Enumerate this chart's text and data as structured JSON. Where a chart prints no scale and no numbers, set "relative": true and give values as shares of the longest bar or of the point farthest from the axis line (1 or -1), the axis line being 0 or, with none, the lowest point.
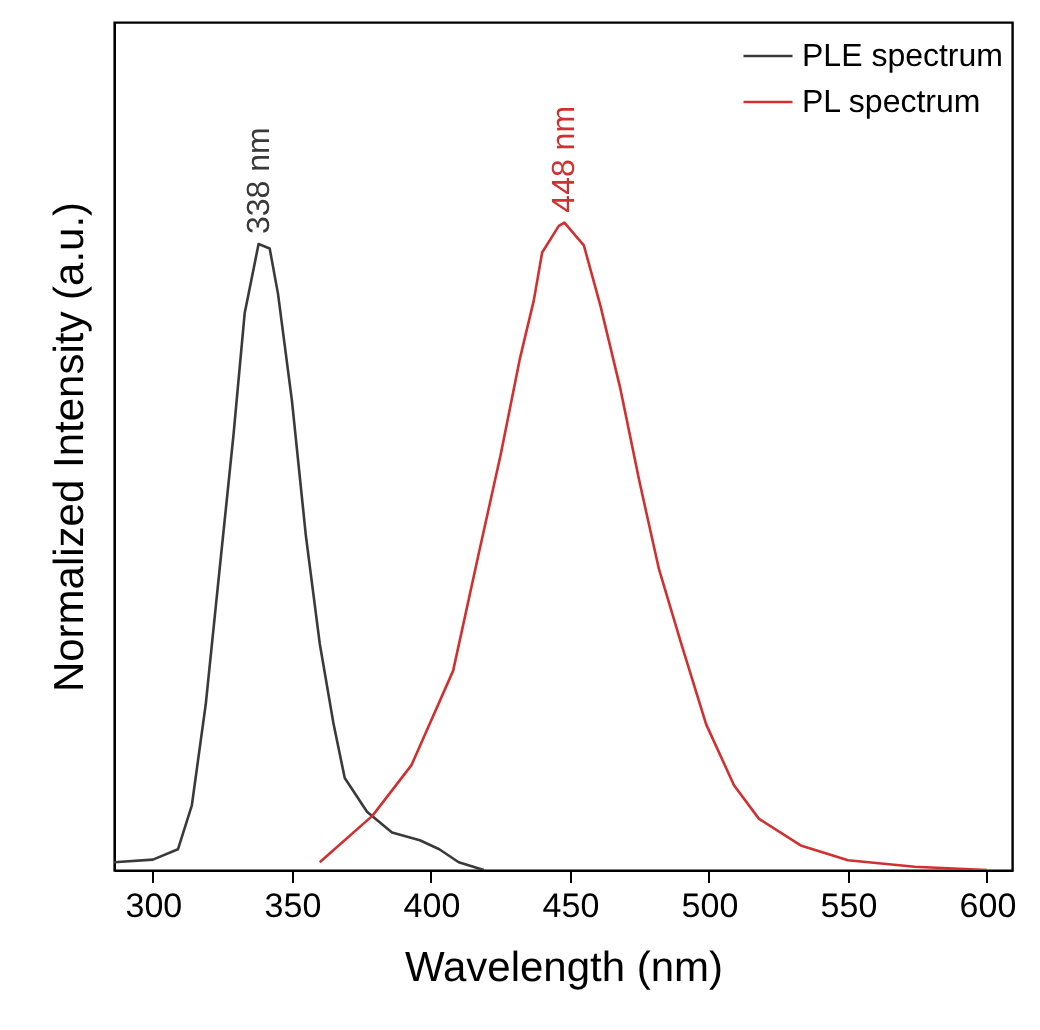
{
  "chart_data": {
    "type": "line",
    "xlabel": "Wavelength (nm)",
    "ylabel": "Normalized Intensity (a.u.)",
    "relative": true,
    "xlim": [
      286,
      609
    ],
    "xticks": [
      300,
      350,
      400,
      450,
      500,
      550,
      600
    ],
    "legend": "top right",
    "grid": false,
    "series": [
      {
        "name": "PLE spectrum",
        "color": "#3a3a3a",
        "x": [
          286,
          300,
          309,
          314,
          319,
          324,
          329,
          333,
          338,
          342,
          345,
          350,
          355,
          360,
          365,
          369,
          377,
          386,
          396,
          403,
          410,
          419
        ],
        "values": [
          0.012,
          0.016,
          0.032,
          0.1,
          0.256,
          0.465,
          0.673,
          0.86,
          0.967,
          0.96,
          0.89,
          0.725,
          0.517,
          0.35,
          0.225,
          0.142,
          0.09,
          0.058,
          0.046,
          0.032,
          0.012,
          0
        ]
      },
      {
        "name": "PL spectrum",
        "color": "#d03030",
        "x": [
          360,
          379,
          393,
          408,
          417,
          425,
          432,
          437,
          440,
          446,
          448,
          455,
          461,
          468,
          475,
          482,
          490,
          499,
          509,
          518,
          533,
          550,
          574,
          600
        ],
        "values": [
          0.012,
          0.084,
          0.162,
          0.308,
          0.485,
          0.64,
          0.79,
          0.88,
          0.954,
          0.995,
          1,
          0.965,
          0.871,
          0.746,
          0.6,
          0.465,
          0.35,
          0.225,
          0.131,
          0.079,
          0.038,
          0.015,
          0.005,
          0
        ]
      }
    ],
    "annotations": [
      {
        "text": "338 nm",
        "x": 338,
        "y": 0.967
      },
      {
        "text": "448 nm",
        "x": 448,
        "y": 1
      }
    ]
  }
}
